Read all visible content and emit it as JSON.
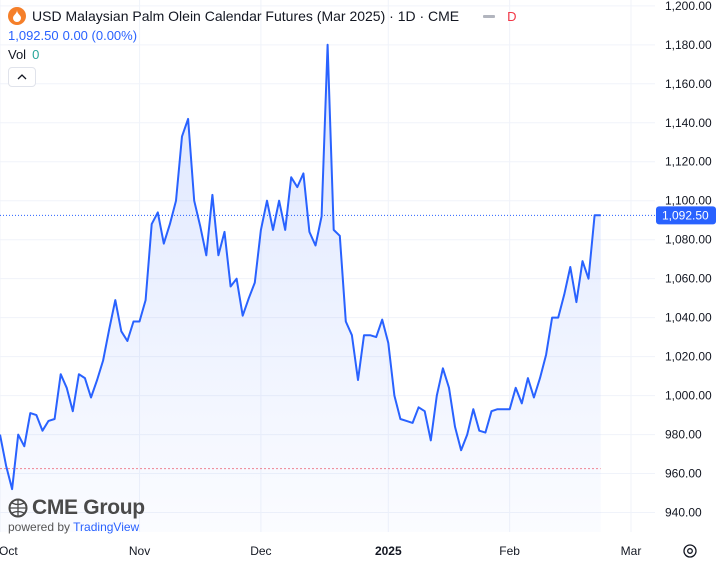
{
  "header": {
    "title": "USD Malaysian Palm Olein Calendar Futures (Mar 2025) · 1D · CME",
    "badge": "D",
    "price": "1,092.50",
    "change": "0.00 (0.00%)",
    "vol_label": "Vol",
    "vol_value": "0"
  },
  "logo": {
    "brand": "CME Group",
    "powered_by": "powered by",
    "powered_name": "TradingView"
  },
  "colors": {
    "line": "#2962ff",
    "fill": "#2962ff",
    "price_tag": "#2962ff",
    "baseline": "#f23645"
  },
  "chart_data": {
    "type": "area",
    "title": "USD Malaysian Palm Olein Calendar Futures (Mar 2025) · 1D · CME",
    "xlabel": "",
    "ylabel": "",
    "x_ticks": [
      "Oct",
      "Nov",
      "Dec",
      "2025",
      "Feb",
      "Mar"
    ],
    "y_ticks": [
      "940.00",
      "960.00",
      "980.00",
      "1,000.00",
      "1,020.00",
      "1,040.00",
      "1,060.00",
      "1,080.00",
      "1,100.00",
      "1,120.00",
      "1,140.00",
      "1,160.00",
      "1,180.00",
      "1,200.00"
    ],
    "ylim": [
      930,
      1203
    ],
    "y_min_tick": 940,
    "y_tick_step": 20,
    "last_price": 1092.5,
    "last_price_label": "1,092.50",
    "baseline_value": 962.5,
    "grid": true,
    "x_index_range": [
      0,
      104
    ],
    "x_tick_index": [
      0,
      23,
      43,
      64,
      84,
      104
    ],
    "series": [
      {
        "values": [
          980,
          964,
          952,
          980,
          974,
          991,
          990,
          982,
          987,
          988,
          1011,
          1004,
          992,
          1011,
          1009,
          999,
          1008,
          1018,
          1034,
          1049,
          1033,
          1028,
          1038,
          1038,
          1049,
          1088,
          1094,
          1078,
          1088,
          1100,
          1133,
          1142,
          1100,
          1087,
          1072,
          1103,
          1072,
          1084,
          1056,
          1060,
          1041,
          1050,
          1058,
          1085,
          1100,
          1085,
          1100,
          1085,
          1112,
          1107,
          1114,
          1084,
          1077,
          1092,
          1180,
          1085,
          1082,
          1038,
          1031,
          1008,
          1031,
          1031,
          1030,
          1039,
          1027,
          1000,
          988,
          987,
          986,
          994,
          992,
          977,
          1000,
          1014,
          1004,
          984,
          972,
          980,
          993,
          982,
          981,
          992,
          993,
          993,
          993,
          1004,
          996,
          1009,
          999,
          1009,
          1021,
          1040,
          1040,
          1052,
          1066,
          1048,
          1069,
          1060,
          1092.5,
          1092.5
        ]
      }
    ]
  }
}
